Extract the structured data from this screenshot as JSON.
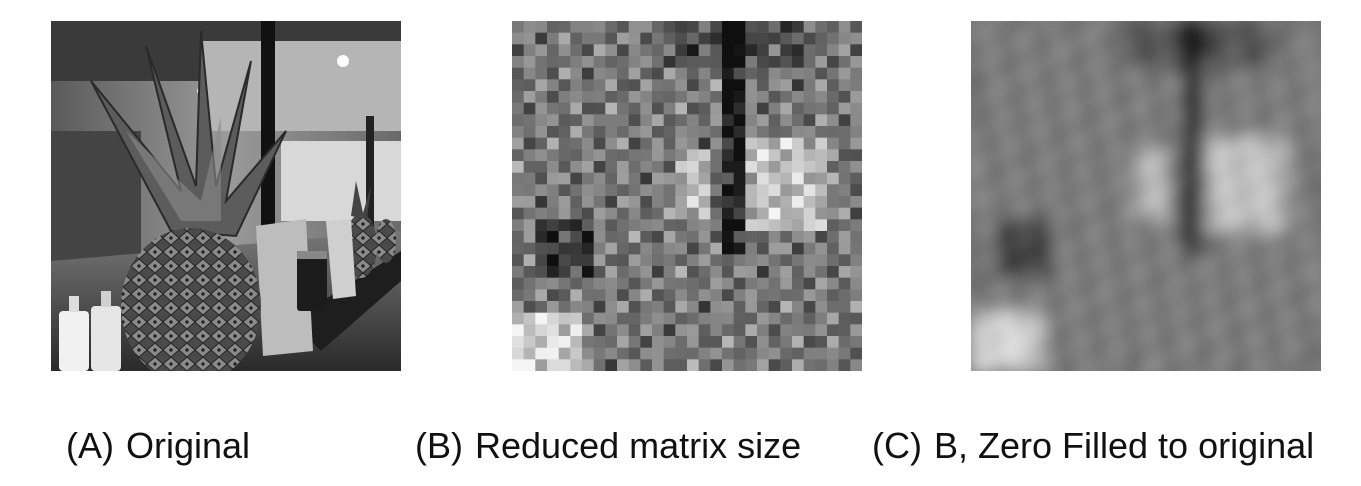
{
  "panels": [
    {
      "letter": "(A)",
      "label": "Original"
    },
    {
      "letter": "(B)",
      "label": "Reduced matrix size"
    },
    {
      "letter": "(C)",
      "label": "B, Zero Filled to original"
    }
  ],
  "colors": {
    "background": "#ffffff",
    "caption_text": "#111111"
  }
}
